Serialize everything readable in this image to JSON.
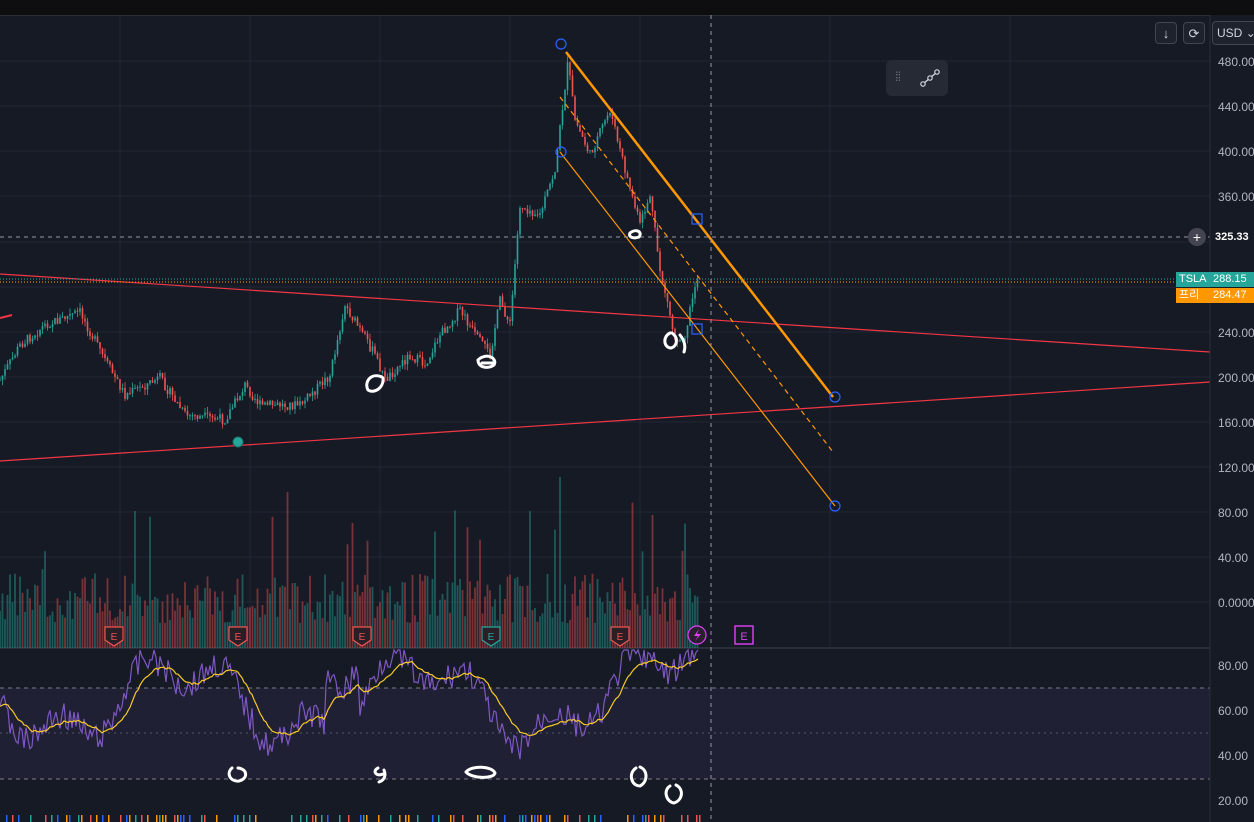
{
  "toolbar": {
    "download_icon": "↓",
    "refresh_icon": "⟳",
    "currency": "USD",
    "currency_caret": "⌄"
  },
  "price_axis": {
    "ticks": [
      "480.00",
      "440.00",
      "400.00",
      "360.00",
      "240.00",
      "200.00",
      "160.00",
      "120.00",
      "80.00",
      "40.00",
      "0.0000"
    ],
    "crosshair_price": "325.33"
  },
  "tags": {
    "symbol_label": "TSLA",
    "symbol_price": "288.15",
    "second_label": "프리",
    "second_price": "284.47"
  },
  "rsi_axis": {
    "ticks": [
      "80.00",
      "60.00",
      "40.00",
      "20.00"
    ]
  },
  "event_markers": [
    "E",
    "E",
    "E",
    "E",
    "E",
    "E"
  ],
  "colors": {
    "background": "#161a25",
    "up_candle": "#26a69a",
    "down_candle": "#ef5350",
    "trendline_red": "#f23645",
    "channel_orange": "#ff9800",
    "rsi_line": "#7e57c2",
    "rsi_ma": "#f7c924",
    "symbol_tag": "#26a69a",
    "second_tag": "#ff9800",
    "earnings_red": "#ef5350",
    "earnings_purple": "#e040fb",
    "anchor_blue": "#2962ff"
  }
}
